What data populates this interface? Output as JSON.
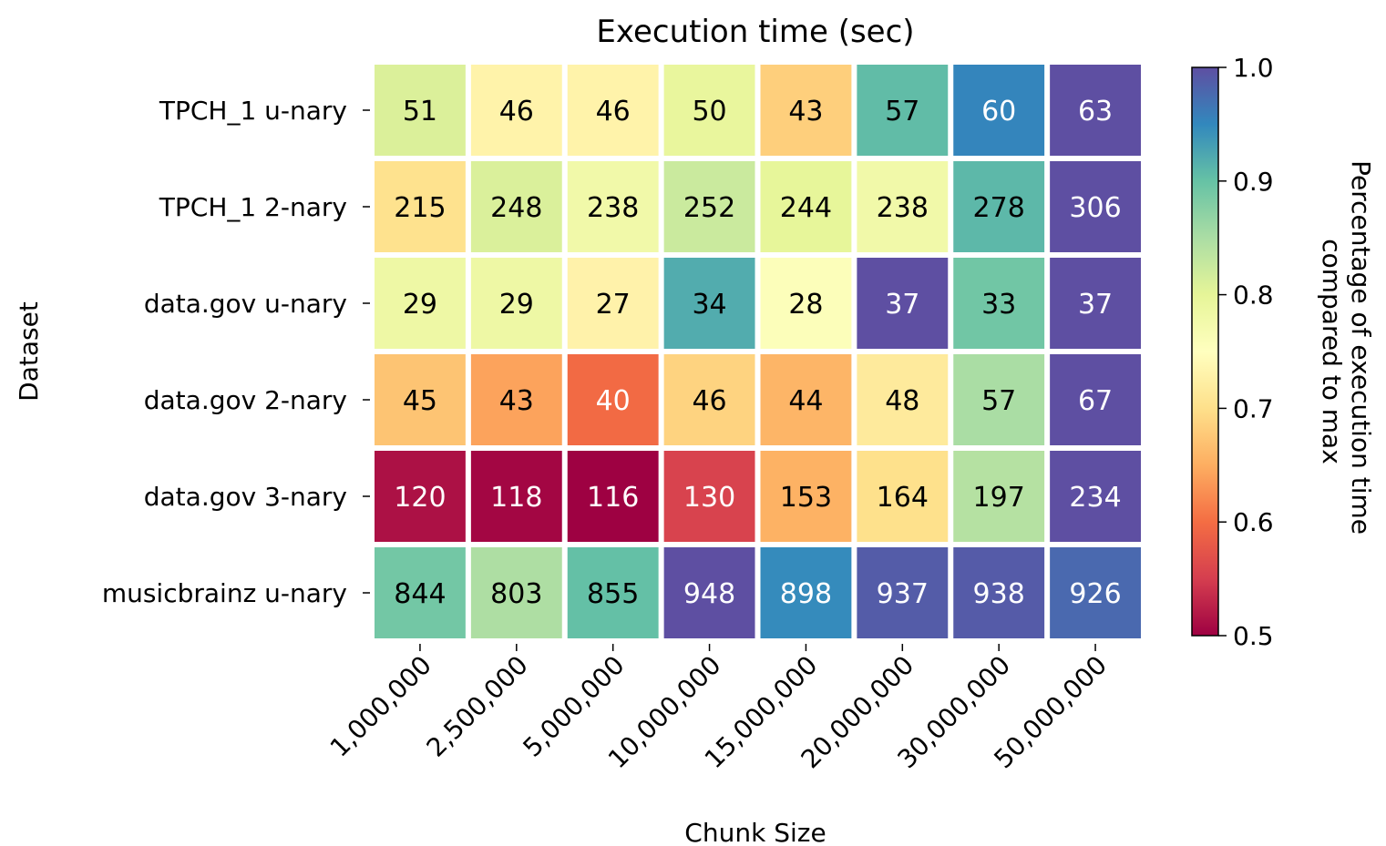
{
  "chart_data": {
    "type": "heatmap",
    "title": "Execution time (sec)",
    "xlabel": "Chunk Size",
    "ylabel": "Dataset",
    "x_categories": [
      "1,000,000",
      "2,500,000",
      "5,000,000",
      "10,000,000",
      "15,000,000",
      "20,000,000",
      "30,000,000",
      "50,000,000"
    ],
    "y_categories": [
      "TPCH_1 u-nary",
      "TPCH_1 2-nary",
      "data.gov u-nary",
      "data.gov 2-nary",
      "data.gov 3-nary",
      "musicbrainz u-nary"
    ],
    "values": [
      [
        51,
        46,
        46,
        50,
        43,
        57,
        60,
        63
      ],
      [
        215,
        248,
        238,
        252,
        244,
        238,
        278,
        306
      ],
      [
        29,
        29,
        27,
        34,
        28,
        37,
        33,
        37
      ],
      [
        45,
        43,
        40,
        46,
        44,
        48,
        57,
        67
      ],
      [
        120,
        118,
        116,
        130,
        153,
        164,
        197,
        234
      ],
      [
        844,
        803,
        855,
        948,
        898,
        937,
        938,
        926
      ]
    ],
    "colorbar": {
      "label": "Percentage of execution time compared to max",
      "label_lines": [
        "Percentage of execution time",
        "compared to max"
      ],
      "range": [
        0.5,
        1.0
      ],
      "ticks": [
        "0.5",
        "0.6",
        "0.7",
        "0.8",
        "0.9",
        "1.0"
      ],
      "colormap": "Spectral",
      "colormap_stops": [
        "#9e0142",
        "#d53e4f",
        "#f46d43",
        "#fdae61",
        "#fee08b",
        "#ffffbf",
        "#e6f598",
        "#abdda4",
        "#66c2a5",
        "#3288bd",
        "#5e4fa2"
      ]
    },
    "grid": false
  }
}
